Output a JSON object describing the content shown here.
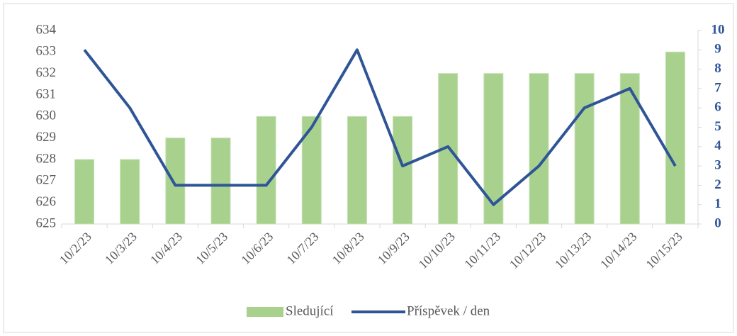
{
  "chart_data": {
    "type": "bar",
    "categories": [
      "10/2/23",
      "10/3/23",
      "10/4/23",
      "10/5/23",
      "10/6/23",
      "10/7/23",
      "10/8/23",
      "10/9/23",
      "10/10/23",
      "10/11/23",
      "10/12/23",
      "10/13/23",
      "10/14/23",
      "10/15/23"
    ],
    "series": [
      {
        "name": "Sledující",
        "type": "bar",
        "color": "#a9d18e",
        "values": [
          628,
          628,
          629,
          629,
          630,
          630,
          630,
          630,
          632,
          632,
          632,
          632,
          632,
          633
        ]
      },
      {
        "name": "Příspěvek / den",
        "type": "line",
        "axis": "y2",
        "color": "#2f5597",
        "values": [
          9,
          6,
          2,
          2,
          2,
          5,
          9,
          3,
          4,
          1,
          3,
          6,
          7,
          3
        ]
      }
    ],
    "ylim": [
      625,
      634
    ],
    "yticks": [
      625,
      626,
      627,
      628,
      629,
      630,
      631,
      632,
      633,
      634
    ],
    "y2lim": [
      0,
      10
    ],
    "y2ticks": [
      0,
      1,
      2,
      3,
      4,
      5,
      6,
      7,
      8,
      9,
      10
    ],
    "legend": "bottom"
  }
}
